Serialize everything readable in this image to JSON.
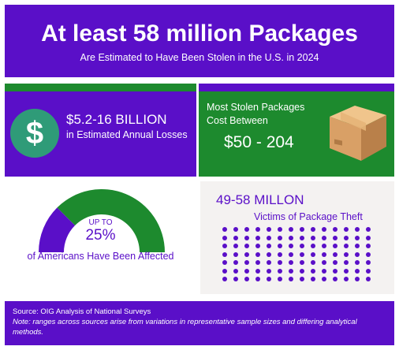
{
  "header": {
    "title": "At least 58 million Packages",
    "subtitle": "Are Estimated to Have Been Stolen in the U.S. in 2024"
  },
  "losses": {
    "icon": "dollar-sign-icon",
    "symbol": "$",
    "amount": "$5.2-16 BILLION",
    "description": "in Estimated Annual Losses"
  },
  "most_stolen": {
    "line1": "Most Stolen Packages",
    "line2": "Cost Between",
    "range": "$50 - 204",
    "icon": "package-box-icon"
  },
  "affected": {
    "prefix": "UP TO",
    "percent": "25%",
    "percent_value": 25,
    "caption": "of Americans Have Been Affected"
  },
  "victims": {
    "count": "49-58 MILLON",
    "label": "Victims of Package Theft",
    "dot_rows": 7,
    "dot_cols": 14
  },
  "footer": {
    "source": "Source: OIG Analysis of National Surveys",
    "note": "Note: ranges across sources arise from variations in representative sample sizes and differing analytical methods."
  },
  "colors": {
    "purple": "#5a0fc8",
    "green": "#1d8a2e",
    "teal": "#2f9b78",
    "light_gray": "#f4f2f1"
  }
}
